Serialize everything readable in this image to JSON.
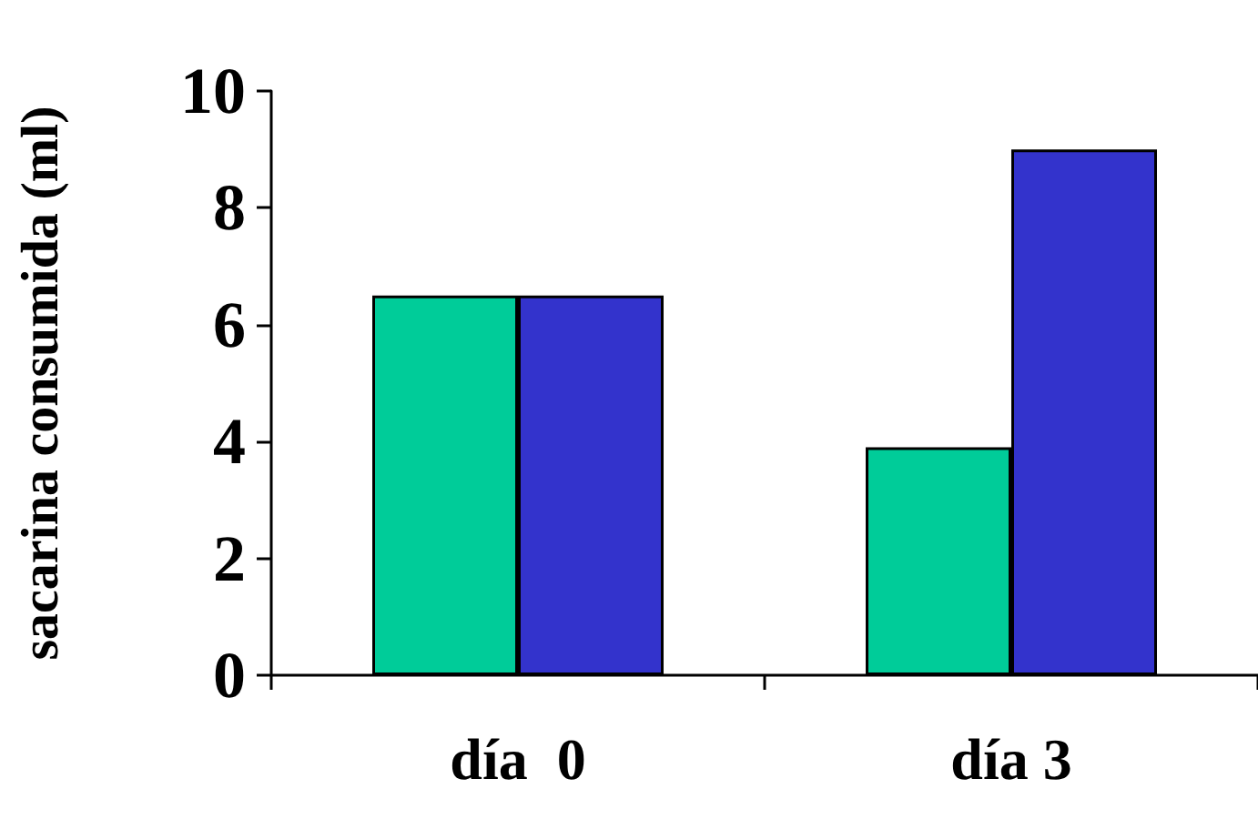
{
  "chart_data": {
    "type": "bar",
    "ylabel": "sacarina consumida (ml)",
    "categories": [
      "día  0",
      "día 3"
    ],
    "series": [
      {
        "color": "#00cc99",
        "values": [
          6.5,
          3.9
        ]
      },
      {
        "color": "#3333cc",
        "values": [
          6.5,
          9.0
        ]
      }
    ],
    "ylim": [
      0,
      10
    ],
    "yticks": [
      0,
      2,
      4,
      6,
      8,
      10
    ]
  }
}
